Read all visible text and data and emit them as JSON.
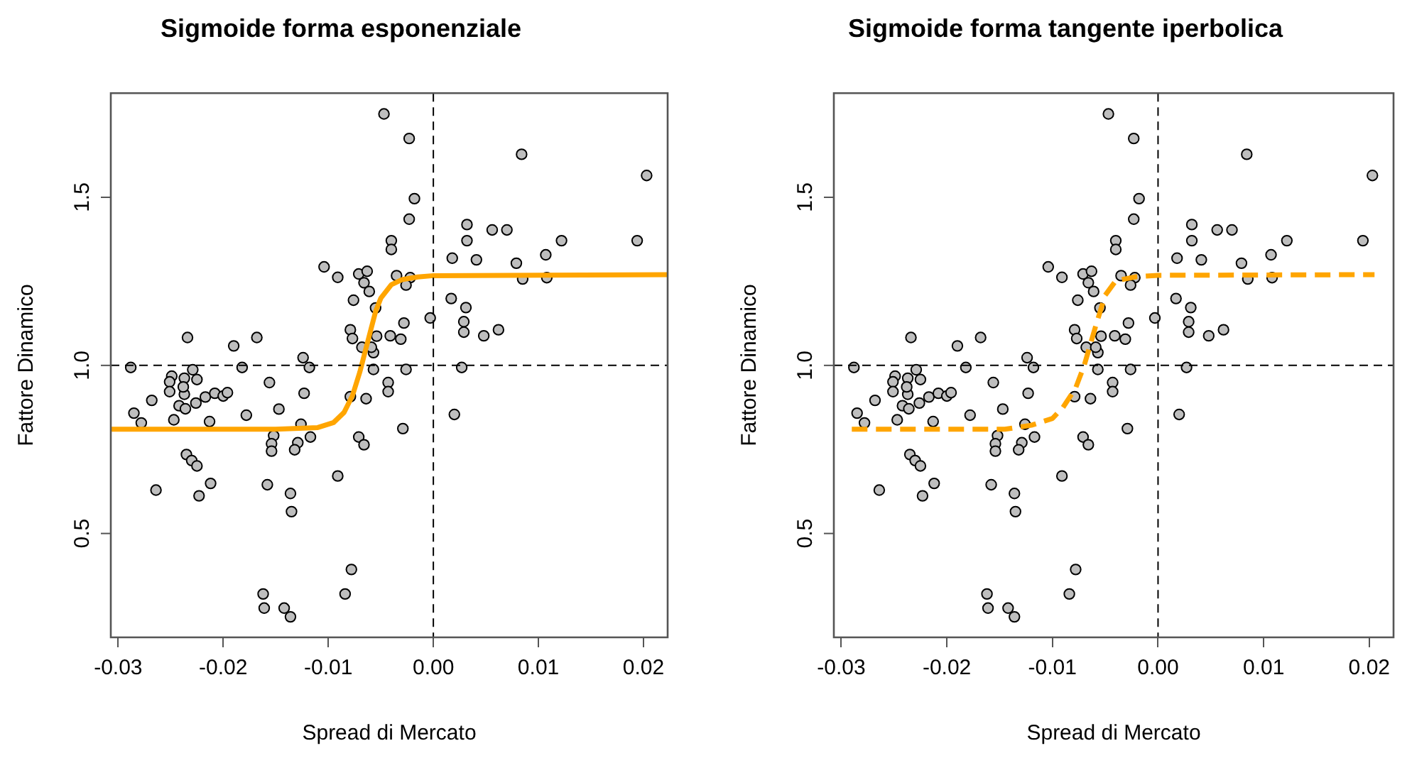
{
  "chart_data": [
    {
      "type": "scatter",
      "title": "Sigmoide forma esponenziale",
      "xlabel": "Spread di Mercato",
      "ylabel": "Fattore Dinamico",
      "xlim": [
        -0.0307,
        0.0223
      ],
      "ylim": [
        0.191,
        1.81
      ],
      "xticks": [
        -0.03,
        -0.02,
        -0.01,
        {
          "value": 0,
          "label": "0.00"
        },
        0.01,
        0.02
      ],
      "yticks": [
        {
          "value": 0.5,
          "label": "0.5"
        },
        {
          "value": 1,
          "label": "1.0"
        },
        {
          "value": 1.5,
          "label": "1.5"
        }
      ],
      "grid": false,
      "legend": false,
      "ref_lines": [
        {
          "axis": "x",
          "value": 0,
          "color": "#000000",
          "line_style": "dashed"
        },
        {
          "axis": "y",
          "value": 1,
          "color": "#000000",
          "line_style": "dashed"
        }
      ],
      "series": [
        {
          "type": "scatter",
          "color": "#bebebe",
          "marker": "circle",
          "x": [
            -0.0047,
            -0.0023,
            0.0084,
            0.0203,
            -0.0018,
            -0.0023,
            0.0032,
            0.0056,
            0.007,
            -0.004,
            0.0032,
            0.0122,
            0.0194,
            -0.004,
            0.0018,
            0.0041,
            0.0107,
            0.0079,
            -0.0104,
            -0.0091,
            -0.0071,
            -0.0063,
            -0.0035,
            -0.0022,
            -0.0066,
            -0.0026,
            0.0085,
            0.0108,
            -0.0061,
            -0.0076,
            0.0017,
            -0.0055,
            0.0031,
            -0.0003,
            0.0029,
            -0.0028,
            0.0029,
            -0.0079,
            0.0062,
            0.0048,
            -0.0077,
            -0.0054,
            -0.0041,
            -0.0031,
            -0.0068,
            -0.0057,
            -0.0059,
            -0.0057,
            -0.0026,
            0.0027,
            -0.0124,
            -0.0118,
            -0.0182,
            -0.0288,
            -0.0234,
            -0.019,
            -0.0168,
            -0.0229,
            -0.0249,
            -0.0237,
            -0.0251,
            -0.0225,
            -0.0251,
            -0.0237,
            -0.0238,
            -0.0268,
            -0.0226,
            -0.0217,
            -0.0208,
            -0.02,
            -0.0196,
            -0.0242,
            -0.0236,
            -0.0285,
            -0.0278,
            -0.0247,
            -0.0213,
            -0.0178,
            -0.0156,
            -0.0147,
            -0.0123,
            -0.0126,
            -0.0117,
            -0.0079,
            -0.0064,
            -0.0043,
            -0.0043,
            -0.0029,
            -0.0071,
            -0.0066,
            0.002,
            -0.0152,
            -0.0154,
            -0.0154,
            -0.0129,
            -0.0132,
            -0.0235,
            -0.023,
            -0.0225,
            -0.0264,
            -0.0223,
            -0.0212,
            -0.0158,
            -0.0136,
            -0.0135,
            -0.0091,
            -0.0078,
            -0.0084,
            -0.0162,
            -0.0161,
            -0.0142,
            -0.0136
          ],
          "values": [
            1.748,
            1.675,
            1.628,
            1.565,
            1.496,
            1.435,
            1.419,
            1.403,
            1.403,
            1.371,
            1.371,
            1.371,
            1.371,
            1.345,
            1.319,
            1.314,
            1.329,
            1.304,
            1.293,
            1.262,
            1.272,
            1.28,
            1.267,
            1.261,
            1.246,
            1.239,
            1.257,
            1.261,
            1.22,
            1.194,
            1.199,
            1.171,
            1.172,
            1.141,
            1.13,
            1.126,
            1.099,
            1.106,
            1.106,
            1.088,
            1.08,
            1.087,
            1.088,
            1.078,
            1.054,
            1.038,
            1.054,
            0.988,
            0.988,
            0.994,
            1.023,
            0.994,
            0.994,
            0.994,
            1.083,
            1.058,
            1.083,
            0.987,
            0.968,
            0.962,
            0.951,
            0.958,
            0.922,
            0.914,
            0.936,
            0.896,
            0.888,
            0.906,
            0.917,
            0.909,
            0.919,
            0.88,
            0.871,
            0.858,
            0.829,
            0.838,
            0.833,
            0.852,
            0.949,
            0.87,
            0.917,
            0.825,
            0.787,
            0.907,
            0.901,
            0.949,
            0.922,
            0.812,
            0.787,
            0.764,
            0.854,
            0.791,
            0.767,
            0.745,
            0.77,
            0.749,
            0.735,
            0.717,
            0.701,
            0.629,
            0.612,
            0.649,
            0.645,
            0.619,
            0.565,
            0.671,
            0.393,
            0.32,
            0.32,
            0.278,
            0.278,
            0.252
          ]
        },
        {
          "type": "line",
          "color": "#ffa500",
          "marker": "none",
          "line_style": "solid",
          "x": [
            -0.0307,
            -0.015,
            -0.011,
            -0.0095,
            -0.0085,
            -0.0077,
            -0.007,
            -0.0065,
            -0.006,
            -0.0055,
            -0.005,
            -0.004,
            -0.003,
            -0.0015,
            0,
            0.0223
          ],
          "values": [
            0.81,
            0.81,
            0.815,
            0.83,
            0.86,
            0.91,
            0.98,
            1.04,
            1.1,
            1.16,
            1.2,
            1.24,
            1.255,
            1.263,
            1.267,
            1.27
          ]
        }
      ]
    },
    {
      "type": "scatter",
      "title": "Sigmoide forma tangente iperbolica",
      "xlabel": "Spread di Mercato",
      "ylabel": "Fattore Dinamico",
      "xlim": [
        -0.0307,
        0.0223
      ],
      "ylim": [
        0.191,
        1.81
      ],
      "xticks": [
        -0.03,
        -0.02,
        -0.01,
        {
          "value": 0,
          "label": "0.00"
        },
        0.01,
        0.02
      ],
      "yticks": [
        {
          "value": 0.5,
          "label": "0.5"
        },
        {
          "value": 1,
          "label": "1.0"
        },
        {
          "value": 1.5,
          "label": "1.5"
        }
      ],
      "grid": false,
      "legend": false,
      "ref_lines": [
        {
          "axis": "x",
          "value": 0,
          "color": "#000000",
          "line_style": "dashed"
        },
        {
          "axis": "y",
          "value": 1,
          "color": "#000000",
          "line_style": "dashed"
        }
      ],
      "series": [
        {
          "type": "scatter",
          "color": "#bebebe",
          "marker": "circle",
          "x": [
            -0.0047,
            -0.0023,
            0.0084,
            0.0203,
            -0.0018,
            -0.0023,
            0.0032,
            0.0056,
            0.007,
            -0.004,
            0.0032,
            0.0122,
            0.0194,
            -0.004,
            0.0018,
            0.0041,
            0.0107,
            0.0079,
            -0.0104,
            -0.0091,
            -0.0071,
            -0.0063,
            -0.0035,
            -0.0022,
            -0.0066,
            -0.0026,
            0.0085,
            0.0108,
            -0.0061,
            -0.0076,
            0.0017,
            -0.0055,
            0.0031,
            -0.0003,
            0.0029,
            -0.0028,
            0.0029,
            -0.0079,
            0.0062,
            0.0048,
            -0.0077,
            -0.0054,
            -0.0041,
            -0.0031,
            -0.0068,
            -0.0057,
            -0.0059,
            -0.0057,
            -0.0026,
            0.0027,
            -0.0124,
            -0.0118,
            -0.0182,
            -0.0288,
            -0.0234,
            -0.019,
            -0.0168,
            -0.0229,
            -0.0249,
            -0.0237,
            -0.0251,
            -0.0225,
            -0.0251,
            -0.0237,
            -0.0238,
            -0.0268,
            -0.0226,
            -0.0217,
            -0.0208,
            -0.02,
            -0.0196,
            -0.0242,
            -0.0236,
            -0.0285,
            -0.0278,
            -0.0247,
            -0.0213,
            -0.0178,
            -0.0156,
            -0.0147,
            -0.0123,
            -0.0126,
            -0.0117,
            -0.0079,
            -0.0064,
            -0.0043,
            -0.0043,
            -0.0029,
            -0.0071,
            -0.0066,
            0.002,
            -0.0152,
            -0.0154,
            -0.0154,
            -0.0129,
            -0.0132,
            -0.0235,
            -0.023,
            -0.0225,
            -0.0264,
            -0.0223,
            -0.0212,
            -0.0158,
            -0.0136,
            -0.0135,
            -0.0091,
            -0.0078,
            -0.0084,
            -0.0162,
            -0.0161,
            -0.0142,
            -0.0136
          ],
          "values": [
            1.748,
            1.675,
            1.628,
            1.565,
            1.496,
            1.435,
            1.419,
            1.403,
            1.403,
            1.371,
            1.371,
            1.371,
            1.371,
            1.345,
            1.319,
            1.314,
            1.329,
            1.304,
            1.293,
            1.262,
            1.272,
            1.28,
            1.267,
            1.261,
            1.246,
            1.239,
            1.257,
            1.261,
            1.22,
            1.194,
            1.199,
            1.171,
            1.172,
            1.141,
            1.13,
            1.126,
            1.099,
            1.106,
            1.106,
            1.088,
            1.08,
            1.087,
            1.088,
            1.078,
            1.054,
            1.038,
            1.054,
            0.988,
            0.988,
            0.994,
            1.023,
            0.994,
            0.994,
            0.994,
            1.083,
            1.058,
            1.083,
            0.987,
            0.968,
            0.962,
            0.951,
            0.958,
            0.922,
            0.914,
            0.936,
            0.896,
            0.888,
            0.906,
            0.917,
            0.909,
            0.919,
            0.88,
            0.871,
            0.858,
            0.829,
            0.838,
            0.833,
            0.852,
            0.949,
            0.87,
            0.917,
            0.825,
            0.787,
            0.907,
            0.901,
            0.949,
            0.922,
            0.812,
            0.787,
            0.764,
            0.854,
            0.791,
            0.767,
            0.745,
            0.77,
            0.749,
            0.735,
            0.717,
            0.701,
            0.629,
            0.612,
            0.649,
            0.645,
            0.619,
            0.565,
            0.671,
            0.393,
            0.32,
            0.32,
            0.278,
            0.278,
            0.252
          ]
        },
        {
          "type": "line",
          "color": "#ffa500",
          "marker": "none",
          "line_style": "dashed",
          "x": [
            -0.029,
            -0.0145,
            -0.012,
            -0.01,
            -0.009,
            -0.0078,
            -0.007,
            -0.006,
            -0.005,
            -0.004,
            -0.002,
            0,
            0.0205
          ],
          "values": [
            0.81,
            0.81,
            0.822,
            0.842,
            0.875,
            0.933,
            0.999,
            1.107,
            1.209,
            1.252,
            1.264,
            1.268,
            1.27
          ]
        }
      ]
    }
  ]
}
